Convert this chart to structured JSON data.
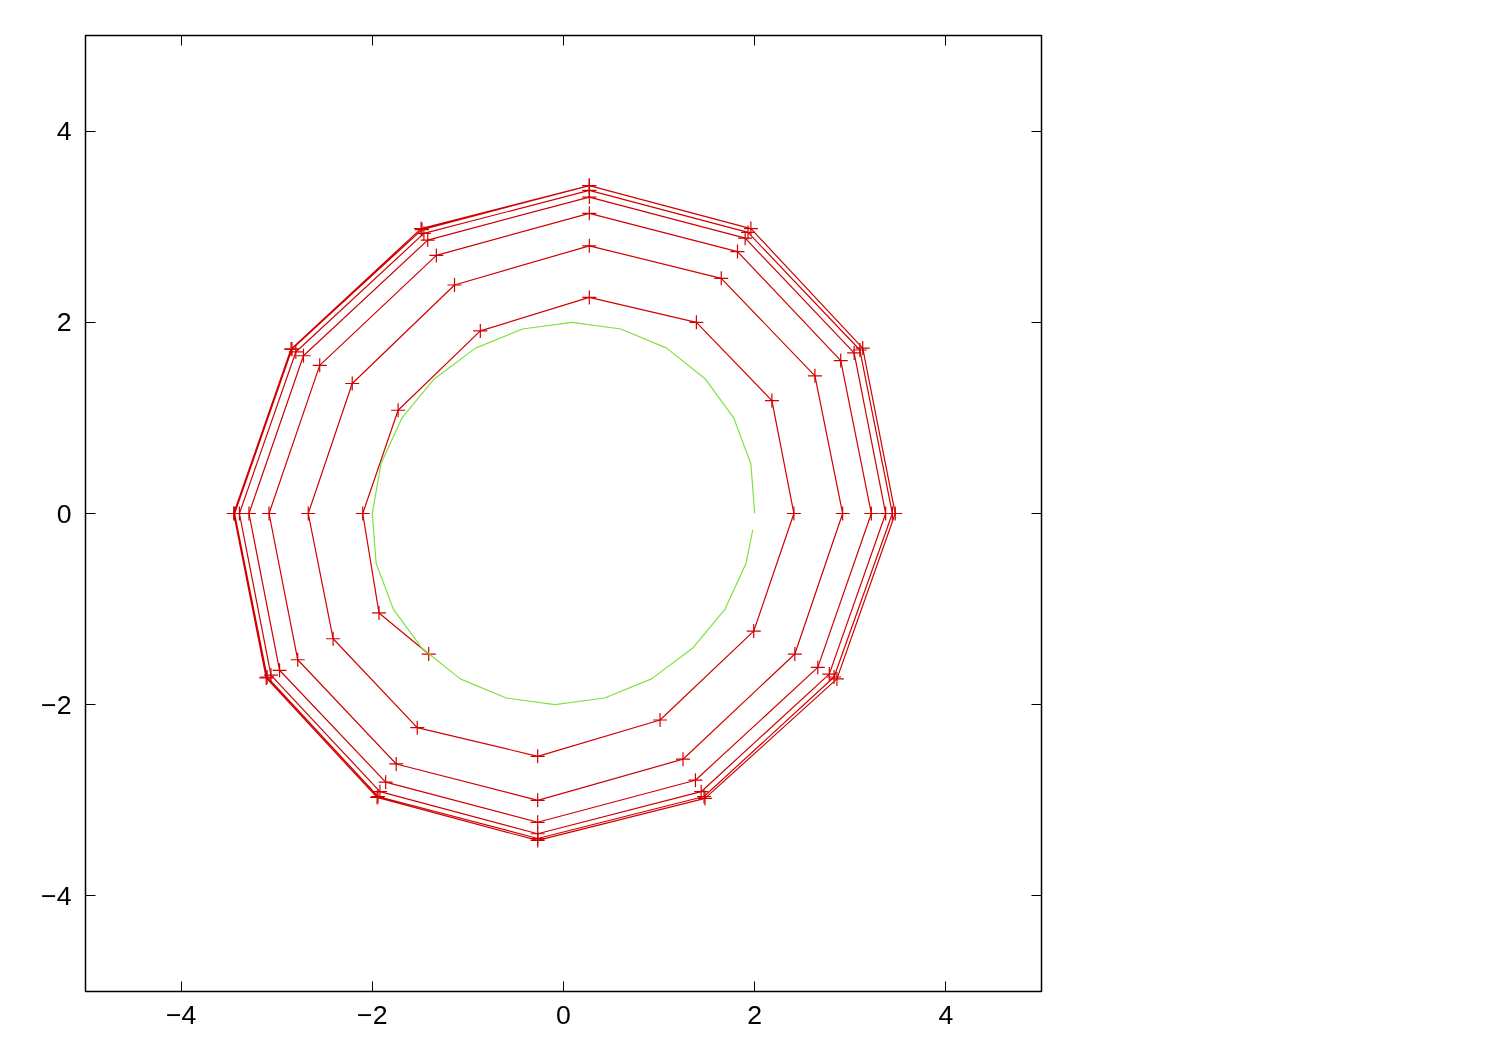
{
  "chart_data": {
    "type": "line",
    "xlim": [
      -5,
      5
    ],
    "ylim": [
      -5,
      5
    ],
    "xticks": [
      -4,
      -2,
      0,
      2,
      4
    ],
    "yticks": [
      -4,
      -2,
      0,
      2,
      4
    ],
    "series": [
      {
        "color": "#d00000",
        "marker": "cross",
        "x": [
          -1.41,
          -1.93,
          -2.1,
          -1.73,
          -0.87,
          0.27,
          1.39,
          2.18,
          2.41,
          1.99,
          1.01,
          -0.27,
          -1.53,
          -2.41,
          -2.67,
          -2.21,
          -1.14,
          0.27,
          1.65,
          2.63,
          2.92,
          2.42,
          1.25,
          -0.27,
          -1.75,
          -2.78,
          -3.08,
          -2.55,
          -1.33,
          0.27,
          1.82,
          2.9,
          3.22,
          2.66,
          1.38,
          -0.27,
          -1.86,
          -2.97,
          -3.29,
          -2.72,
          -1.42,
          0.27,
          1.9,
          3.04,
          3.37,
          2.78,
          1.44,
          -0.27,
          -1.92,
          -3.06,
          -3.39,
          -2.8,
          -1.46,
          0.27,
          1.93,
          3.1,
          3.44,
          2.83,
          1.47,
          -0.27,
          -1.94,
          -3.1,
          -3.44,
          -2.84,
          -1.48,
          0.27,
          1.96,
          3.13,
          3.47,
          2.86,
          1.48,
          -0.27,
          -1.95,
          -3.11,
          -3.45,
          -2.85,
          -1.49,
          0.27
        ],
        "values": [
          -1.47,
          -1.04,
          0,
          1.08,
          1.91,
          2.26,
          2.0,
          1.18,
          0,
          -1.23,
          -2.16,
          -2.54,
          -2.24,
          -1.31,
          0,
          1.36,
          2.39,
          2.8,
          2.46,
          1.44,
          0,
          -1.47,
          -2.57,
          -3.0,
          -2.62,
          -1.53,
          0,
          1.55,
          2.7,
          3.14,
          2.74,
          1.6,
          0,
          -1.61,
          -2.79,
          -3.23,
          -2.81,
          -1.64,
          0,
          1.65,
          2.86,
          3.31,
          2.88,
          1.68,
          0,
          -1.68,
          -2.91,
          -3.35,
          -2.91,
          -1.69,
          0,
          1.69,
          2.93,
          3.38,
          2.94,
          1.71,
          0,
          -1.71,
          -2.96,
          -3.4,
          -2.96,
          -1.71,
          0,
          1.72,
          2.97,
          3.43,
          2.98,
          1.73,
          0,
          -1.73,
          -2.98,
          -3.42,
          -2.97,
          -1.72,
          0,
          1.72,
          2.98,
          3.43
        ]
      },
      {
        "color": "#80e040",
        "marker": "none",
        "x": [
          2.0,
          1.96,
          1.78,
          1.48,
          1.08,
          0.6,
          0.09,
          -0.43,
          -0.92,
          -1.35,
          -1.69,
          -1.91,
          -2.0,
          -1.96,
          -1.78,
          -1.48,
          -1.08,
          -0.6,
          -0.09,
          0.43,
          0.92,
          1.35,
          1.69,
          1.91,
          1.98
        ],
        "values": [
          0,
          0.52,
          1.0,
          1.41,
          1.73,
          1.93,
          2.0,
          1.93,
          1.73,
          1.41,
          1.0,
          0.52,
          0,
          -0.52,
          -1.0,
          -1.41,
          -1.73,
          -1.93,
          -2.0,
          -1.93,
          -1.73,
          -1.41,
          -1.0,
          -0.52,
          -0.17
        ]
      }
    ]
  }
}
